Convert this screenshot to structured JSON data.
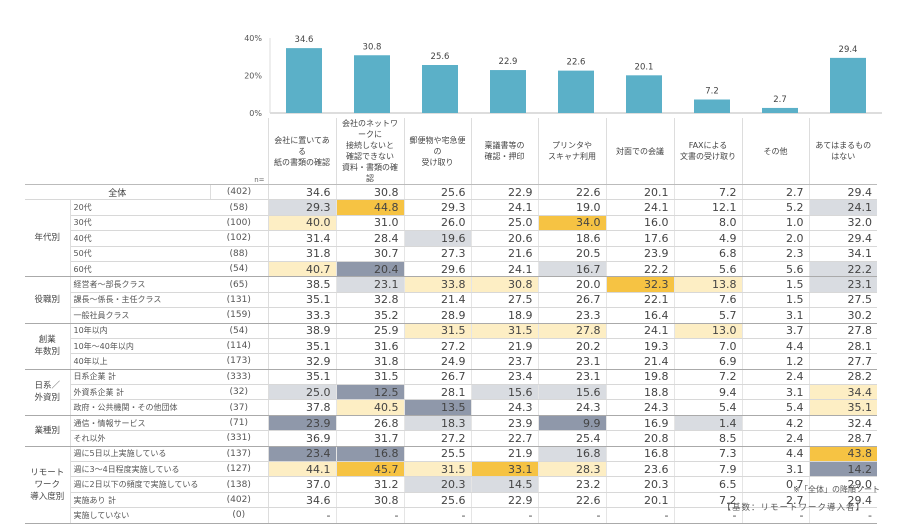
{
  "chart_data": {
    "type": "bar",
    "title": "",
    "ylim": [
      0,
      40
    ],
    "yticks": [
      "0%",
      "20%",
      "40%"
    ],
    "categories": [
      "会社に置いてある紙の書類の確認",
      "会社のネットワークに接続しないと確認できない資料・書類の確認",
      "郵便物や宅急便の受け取り",
      "稟議書等の確認・押印",
      "プリンタやスキャナ利用",
      "対面での会議",
      "FAXによる文書の受け取り",
      "その他",
      "あてはまるものはない"
    ],
    "category_lines": [
      [
        "会社に置いてある",
        "紙の書類の確認"
      ],
      [
        "会社のネットワークに",
        "接続しないと",
        "確認できない",
        "資料・書類の確認"
      ],
      [
        "郵便物や宅急便の",
        "受け取り"
      ],
      [
        "稟議書等の",
        "確認・押印"
      ],
      [
        "プリンタや",
        "スキャナ利用"
      ],
      [
        "対面での会議"
      ],
      [
        "FAXによる",
        "文書の受け取り"
      ],
      [
        "その他"
      ],
      [
        "あてはまるもの",
        "はない"
      ]
    ],
    "values": [
      34.6,
      30.8,
      25.6,
      22.9,
      22.6,
      20.1,
      7.2,
      2.7,
      29.4
    ],
    "bar_color": "#5bb0c8"
  },
  "table": {
    "n_label": "n=",
    "total": {
      "label": "全体",
      "n": "(402)",
      "values": [
        "34.6",
        "30.8",
        "25.6",
        "22.9",
        "22.6",
        "20.1",
        "7.2",
        "2.7",
        "29.4"
      ]
    },
    "groups": [
      {
        "label": "年代別",
        "rows": [
          {
            "label": "20代",
            "n": "(58)",
            "values": [
              "29.3",
              "44.8",
              "29.3",
              "24.1",
              "19.0",
              "24.1",
              "12.1",
              "5.2",
              "24.1"
            ],
            "hl": [
              "lg",
              "dy",
              "",
              "",
              "",
              "",
              "",
              "",
              "lg"
            ]
          },
          {
            "label": "30代",
            "n": "(100)",
            "values": [
              "40.0",
              "31.0",
              "26.0",
              "25.0",
              "34.0",
              "16.0",
              "8.0",
              "1.0",
              "32.0"
            ],
            "hl": [
              "ly",
              "",
              "",
              "",
              "dy",
              "",
              "",
              "",
              ""
            ]
          },
          {
            "label": "40代",
            "n": "(102)",
            "values": [
              "31.4",
              "28.4",
              "19.6",
              "20.6",
              "18.6",
              "17.6",
              "4.9",
              "2.0",
              "29.4"
            ],
            "hl": [
              "",
              "",
              "lg",
              "",
              "",
              "",
              "",
              "",
              ""
            ]
          },
          {
            "label": "50代",
            "n": "(88)",
            "values": [
              "31.8",
              "30.7",
              "27.3",
              "21.6",
              "20.5",
              "23.9",
              "6.8",
              "2.3",
              "34.1"
            ],
            "hl": [
              "",
              "",
              "",
              "",
              "",
              "",
              "",
              "",
              ""
            ]
          },
          {
            "label": "60代",
            "n": "(54)",
            "values": [
              "40.7",
              "20.4",
              "29.6",
              "24.1",
              "16.7",
              "22.2",
              "5.6",
              "5.6",
              "22.2"
            ],
            "hl": [
              "ly",
              "dg",
              "",
              "",
              "lg",
              "",
              "",
              "",
              "lg"
            ]
          }
        ]
      },
      {
        "label": "役職別",
        "rows": [
          {
            "label": "経営者～部長クラス",
            "n": "(65)",
            "values": [
              "38.5",
              "23.1",
              "33.8",
              "30.8",
              "20.0",
              "32.3",
              "13.8",
              "1.5",
              "23.1"
            ],
            "hl": [
              "",
              "lg",
              "ly",
              "ly",
              "",
              "dy",
              "ly",
              "",
              "lg"
            ]
          },
          {
            "label": "課長～係長・主任クラス",
            "n": "(131)",
            "values": [
              "35.1",
              "32.8",
              "21.4",
              "27.5",
              "26.7",
              "22.1",
              "7.6",
              "1.5",
              "27.5"
            ],
            "hl": [
              "",
              "",
              "",
              "",
              "",
              "",
              "",
              "",
              ""
            ]
          },
          {
            "label": "一般社員クラス",
            "n": "(159)",
            "values": [
              "33.3",
              "35.2",
              "28.9",
              "18.9",
              "23.3",
              "16.4",
              "5.7",
              "3.1",
              "30.2"
            ],
            "hl": [
              "",
              "",
              "",
              "",
              "",
              "",
              "",
              "",
              ""
            ]
          }
        ]
      },
      {
        "label": "創業年数別",
        "label_lines": [
          "創業",
          "年数別"
        ],
        "rows": [
          {
            "label": "10年以内",
            "n": "(54)",
            "values": [
              "38.9",
              "25.9",
              "31.5",
              "31.5",
              "27.8",
              "24.1",
              "13.0",
              "3.7",
              "27.8"
            ],
            "hl": [
              "",
              "",
              "ly",
              "ly",
              "ly",
              "",
              "ly",
              "",
              ""
            ]
          },
          {
            "label": "10年～40年以内",
            "n": "(114)",
            "values": [
              "35.1",
              "31.6",
              "27.2",
              "21.9",
              "20.2",
              "19.3",
              "7.0",
              "4.4",
              "28.1"
            ],
            "hl": [
              "",
              "",
              "",
              "",
              "",
              "",
              "",
              "",
              ""
            ]
          },
          {
            "label": "40年以上",
            "n": "(173)",
            "values": [
              "32.9",
              "31.8",
              "24.9",
              "23.7",
              "23.1",
              "21.4",
              "6.9",
              "1.2",
              "27.7"
            ],
            "hl": [
              "",
              "",
              "",
              "",
              "",
              "",
              "",
              "",
              ""
            ]
          }
        ]
      },
      {
        "label": "日系／外資別",
        "label_lines": [
          "日系／",
          "外資別"
        ],
        "rows": [
          {
            "label": "日系企業 計",
            "n": "(333)",
            "values": [
              "35.1",
              "31.5",
              "26.7",
              "23.4",
              "23.1",
              "19.8",
              "7.2",
              "2.4",
              "28.2"
            ],
            "hl": [
              "",
              "",
              "",
              "",
              "",
              "",
              "",
              "",
              ""
            ]
          },
          {
            "label": "外資系企業 計",
            "n": "(32)",
            "values": [
              "25.0",
              "12.5",
              "28.1",
              "15.6",
              "15.6",
              "18.8",
              "9.4",
              "3.1",
              "34.4"
            ],
            "hl": [
              "lg",
              "dg",
              "",
              "lg",
              "lg",
              "",
              "",
              "",
              "ly"
            ]
          },
          {
            "label": "政府・公共機関・その他団体",
            "n": "(37)",
            "values": [
              "37.8",
              "40.5",
              "13.5",
              "24.3",
              "24.3",
              "24.3",
              "5.4",
              "5.4",
              "35.1"
            ],
            "hl": [
              "",
              "ly",
              "dg",
              "",
              "",
              "",
              "",
              "",
              "ly"
            ]
          }
        ]
      },
      {
        "label": "業種別",
        "rows": [
          {
            "label": "通信・情報サービス",
            "n": "(71)",
            "values": [
              "23.9",
              "26.8",
              "18.3",
              "23.9",
              "9.9",
              "16.9",
              "1.4",
              "4.2",
              "32.4"
            ],
            "hl": [
              "dg",
              "",
              "lg",
              "",
              "dg",
              "",
              "lg",
              "",
              ""
            ]
          },
          {
            "label": "それ以外",
            "n": "(331)",
            "values": [
              "36.9",
              "31.7",
              "27.2",
              "22.7",
              "25.4",
              "20.8",
              "8.5",
              "2.4",
              "28.7"
            ],
            "hl": [
              "",
              "",
              "",
              "",
              "",
              "",
              "",
              "",
              ""
            ]
          }
        ]
      },
      {
        "label": "リモートワーク導入度別",
        "label_lines": [
          "リモートワーク",
          "導入度別"
        ],
        "rows": [
          {
            "label": "週に5日以上実施している",
            "n": "(137)",
            "values": [
              "23.4",
              "16.8",
              "25.5",
              "21.9",
              "16.8",
              "16.8",
              "7.3",
              "4.4",
              "43.8"
            ],
            "hl": [
              "dg",
              "dg",
              "",
              "",
              "lg",
              "",
              "",
              "",
              "dy"
            ]
          },
          {
            "label": "週に3～4日程度実施している",
            "n": "(127)",
            "values": [
              "44.1",
              "45.7",
              "31.5",
              "33.1",
              "28.3",
              "23.6",
              "7.9",
              "3.1",
              "14.2"
            ],
            "hl": [
              "ly",
              "dy",
              "ly",
              "dy",
              "ly",
              "",
              "",
              "",
              "dg"
            ]
          },
          {
            "label": "週に2日以下の頻度で実施している",
            "n": "(138)",
            "values": [
              "37.0",
              "31.2",
              "20.3",
              "14.5",
              "23.2",
              "20.3",
              "6.5",
              "0.7",
              "29.0"
            ],
            "hl": [
              "",
              "",
              "lg",
              "lg",
              "",
              "",
              "",
              "",
              ""
            ]
          },
          {
            "label": "実施あり 計",
            "n": "(402)",
            "values": [
              "34.6",
              "30.8",
              "25.6",
              "22.9",
              "22.6",
              "20.1",
              "7.2",
              "2.7",
              "29.4"
            ],
            "hl": [
              "",
              "",
              "",
              "",
              "",
              "",
              "",
              "",
              ""
            ]
          },
          {
            "label": "実施していない",
            "n": "(0)",
            "values": [
              "-",
              "-",
              "-",
              "-",
              "-",
              "-",
              "-",
              "-",
              "-"
            ],
            "hl": [
              "",
              "",
              "",
              "",
              "",
              "",
              "",
              "",
              ""
            ]
          }
        ]
      }
    ],
    "highlight_colors": {
      "dy": "#f6c343",
      "ly": "#fdeec4",
      "dg": "#8f98aa",
      "lg": "#d9dce1"
    }
  },
  "notes": {
    "sort_note": "※「全体」の降順ソート",
    "base_note": "【基数：リモートワーク導入者】"
  }
}
